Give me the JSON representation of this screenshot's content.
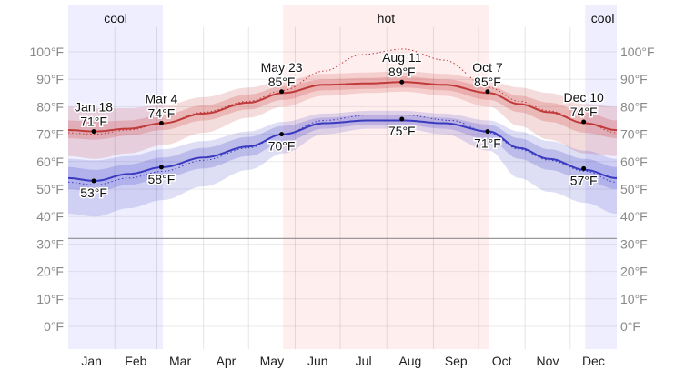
{
  "chart_data": {
    "type": "line",
    "ylim": [
      -10,
      115
    ],
    "y_ticks": [
      "0°F",
      "10°F",
      "20°F",
      "30°F",
      "40°F",
      "50°F",
      "60°F",
      "70°F",
      "80°F",
      "90°F",
      "100°F"
    ],
    "y_tick_values": [
      0,
      10,
      20,
      30,
      40,
      50,
      60,
      70,
      80,
      90,
      100
    ],
    "freezing_line": 32,
    "x_ticks": [
      "Jan",
      "Feb",
      "Mar",
      "Apr",
      "May",
      "Jun",
      "Jul",
      "Aug",
      "Sep",
      "Oct",
      "Nov",
      "Dec"
    ],
    "grid": true,
    "seasons": [
      {
        "label": "cool",
        "start_day": 0,
        "end_day": 63,
        "color": "#eeeeff"
      },
      {
        "label": "hot",
        "start_day": 143,
        "end_day": 280,
        "color": "#ffeeee"
      },
      {
        "label": "cool",
        "start_day": 344,
        "end_day": 365,
        "color": "#eeeeff",
        "label_only_end": true
      }
    ],
    "days": [
      0,
      18,
      40,
      63,
      90,
      120,
      143,
      170,
      200,
      223,
      250,
      280,
      300,
      320,
      344,
      365
    ],
    "series": [
      {
        "key": "avg_high",
        "color": "#c03a3a",
        "values": [
          71.5,
          71,
          72,
          74,
          77.5,
          81.5,
          85,
          88,
          88.5,
          89,
          88,
          85,
          81,
          78,
          74,
          71.5
        ],
        "p25": [
          68.5,
          68,
          69.5,
          71.5,
          75,
          79,
          82.5,
          86,
          86.5,
          87,
          86,
          82.5,
          78,
          74.5,
          70.5,
          68.5
        ],
        "p75": [
          75,
          74.5,
          75,
          77,
          80.5,
          84.5,
          87.5,
          90,
          90.5,
          91,
          90,
          87.5,
          84,
          81.5,
          78,
          75
        ],
        "p10": [
          62,
          61,
          63,
          66,
          70.5,
          76,
          80,
          84,
          85,
          85.5,
          84,
          80,
          73,
          68,
          63,
          62
        ],
        "p90": [
          80,
          79.5,
          79.5,
          80.5,
          83.5,
          87,
          89.5,
          92,
          92.5,
          93,
          92,
          89.5,
          87,
          85,
          81,
          80
        ]
      },
      {
        "key": "avg_low",
        "color": "#3a3ac0",
        "values": [
          54,
          53,
          55.5,
          58,
          61.5,
          65.5,
          70,
          74,
          75,
          75,
          74,
          71,
          65,
          61,
          57,
          54
        ],
        "p25": [
          50,
          49,
          51.5,
          54,
          57.5,
          62,
          67,
          72,
          73.5,
          73.5,
          72,
          68,
          61,
          57,
          53,
          50
        ],
        "p75": [
          58,
          57,
          59,
          61.5,
          65,
          69,
          73,
          76,
          77,
          77,
          76,
          73.5,
          68.5,
          64.5,
          61,
          58
        ],
        "p10": [
          41,
          40,
          43,
          46,
          51,
          57,
          63,
          70,
          72,
          72,
          70,
          64,
          54,
          49,
          45,
          41
        ],
        "p90": [
          61,
          60.5,
          62,
          64.5,
          67.5,
          71,
          74.5,
          77.5,
          78.5,
          78.5,
          77.5,
          75,
          71,
          67.5,
          64,
          61
        ]
      }
    ],
    "perceived": [
      {
        "key": "perceived_high",
        "color": "#c03a3a",
        "days": [
          0,
          18,
          40,
          63,
          90,
          120,
          143,
          170,
          195,
          223,
          250,
          280,
          300,
          320,
          344,
          365
        ],
        "values": [
          70.5,
          70,
          71.5,
          74,
          78,
          82,
          86,
          93,
          99,
          101,
          97,
          87,
          82,
          78.5,
          74,
          70.5
        ]
      },
      {
        "key": "perceived_low",
        "color": "#3a3ac0",
        "days": [
          0,
          18,
          40,
          63,
          90,
          120,
          143,
          170,
          200,
          223,
          255,
          280,
          300,
          320,
          344,
          365
        ],
        "values": [
          52.5,
          51.5,
          54,
          56.5,
          60.5,
          65,
          70,
          75,
          77,
          77,
          75,
          70.5,
          64.5,
          60.5,
          56.5,
          52.5
        ]
      }
    ],
    "annotations": [
      {
        "day": 17,
        "value": 71,
        "date": "Jan 18",
        "label": "71°F",
        "pos": "above"
      },
      {
        "day": 17,
        "value": 53,
        "date": "",
        "label": "53°F",
        "pos": "below"
      },
      {
        "day": 62,
        "value": 74,
        "date": "Mar 4",
        "label": "74°F",
        "pos": "above"
      },
      {
        "day": 62,
        "value": 58,
        "date": "",
        "label": "58°F",
        "pos": "below"
      },
      {
        "day": 142,
        "value": 85.5,
        "date": "May 23",
        "label": "85°F",
        "pos": "above"
      },
      {
        "day": 142,
        "value": 70,
        "date": "",
        "label": "70°F",
        "pos": "below"
      },
      {
        "day": 222,
        "value": 89,
        "date": "Aug 11",
        "label": "89°F",
        "pos": "above"
      },
      {
        "day": 222,
        "value": 75.5,
        "date": "",
        "label": "75°F",
        "pos": "below"
      },
      {
        "day": 279,
        "value": 85.5,
        "date": "Oct 7",
        "label": "85°F",
        "pos": "above"
      },
      {
        "day": 279,
        "value": 71,
        "date": "",
        "label": "71°F",
        "pos": "below"
      },
      {
        "day": 343,
        "value": 74.5,
        "date": "Dec 10",
        "label": "74°F",
        "pos": "above"
      },
      {
        "day": 343,
        "value": 57.5,
        "date": "",
        "label": "57°F",
        "pos": "below"
      }
    ]
  }
}
